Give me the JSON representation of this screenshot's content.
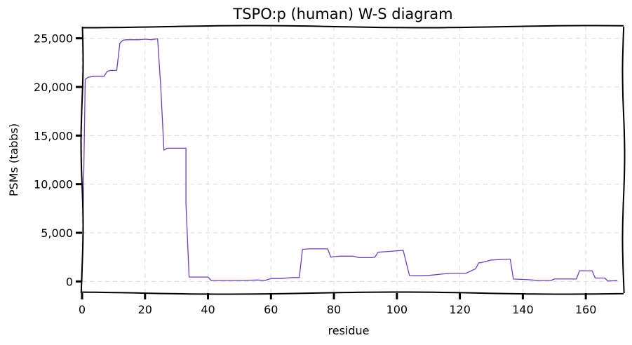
{
  "chart_data": {
    "type": "line",
    "title": "TSPO:p (human) W-S diagram",
    "xlabel": "residue",
    "ylabel": "PSMs (tabbs)",
    "xlim": [
      0,
      172
    ],
    "ylim": [
      -1200,
      26200
    ],
    "x_ticks": [
      0,
      20,
      40,
      60,
      80,
      100,
      120,
      140,
      160
    ],
    "y_ticks": [
      0,
      5000,
      10000,
      15000,
      20000,
      25000
    ],
    "y_tick_labels": [
      "0",
      "5,000",
      "10,000",
      "15,000",
      "20,000",
      "25,000"
    ],
    "grid": true,
    "legend": "none",
    "series": [
      {
        "color": "#6a3fc4",
        "x": [
          0,
          1,
          2,
          4,
          7,
          8,
          9,
          11,
          12,
          13,
          14,
          18,
          20,
          22,
          24,
          25,
          26,
          27,
          33,
          33,
          34,
          40,
          41,
          50,
          56,
          58,
          60,
          63,
          67,
          69,
          70,
          72,
          78,
          79,
          80,
          82,
          86,
          88,
          92,
          93,
          94,
          98,
          102,
          104,
          107,
          110,
          117,
          122,
          125,
          126,
          127,
          130,
          136,
          137,
          141,
          145,
          149,
          150,
          157,
          158,
          162,
          163,
          166,
          167,
          170
        ],
        "y": [
          0,
          20800,
          21000,
          21100,
          21100,
          21600,
          21700,
          21700,
          24500,
          24800,
          24850,
          24850,
          24900,
          24850,
          24950,
          20000,
          13500,
          13700,
          13700,
          8000,
          450,
          450,
          100,
          100,
          150,
          100,
          300,
          300,
          400,
          400,
          3300,
          3350,
          3350,
          2500,
          2550,
          2600,
          2600,
          2450,
          2450,
          2500,
          3000,
          3100,
          3200,
          600,
          580,
          620,
          850,
          850,
          1300,
          1900,
          1950,
          2200,
          2300,
          250,
          200,
          100,
          100,
          250,
          250,
          1100,
          1100,
          350,
          350,
          50,
          80
        ]
      }
    ]
  }
}
